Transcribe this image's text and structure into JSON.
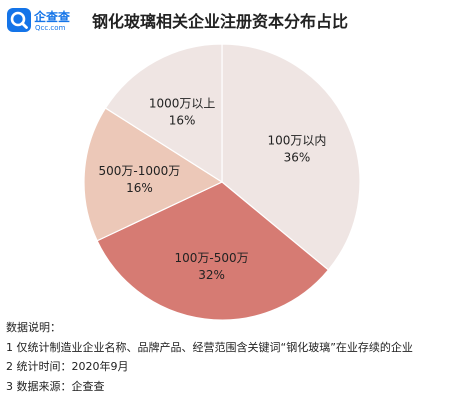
{
  "brand": {
    "name": "企查查",
    "domain": "Qcc.com",
    "logo_icon": "qcc-magnifier-logo-icon",
    "color": "#1474e8"
  },
  "header": {
    "title": "钢化玻璃相关企业注册资本分布占比"
  },
  "chart_data": {
    "type": "pie",
    "title": "钢化玻璃相关企业注册资本分布占比",
    "start_angle_deg": 0,
    "direction": "clockwise",
    "slices": [
      {
        "label": "100万以内",
        "value": 36,
        "value_label": "36%",
        "color": "#efe5e3"
      },
      {
        "label": "100万-500万",
        "value": 32,
        "value_label": "32%",
        "color": "#d67b73"
      },
      {
        "label": "500万-1000万",
        "value": 16,
        "value_label": "16%",
        "color": "#ecc8b8"
      },
      {
        "label": "1000万以上",
        "value": 16,
        "value_label": "16%",
        "color": "#efe5e3"
      }
    ]
  },
  "notes": {
    "heading": "数据说明：",
    "items": [
      "1 仅统计制造业企业名称、品牌产品、经营范围含关键词“钢化玻璃”在业存续的企业",
      "2 统计时间：2020年9月",
      "3 数据来源：企查查"
    ]
  }
}
